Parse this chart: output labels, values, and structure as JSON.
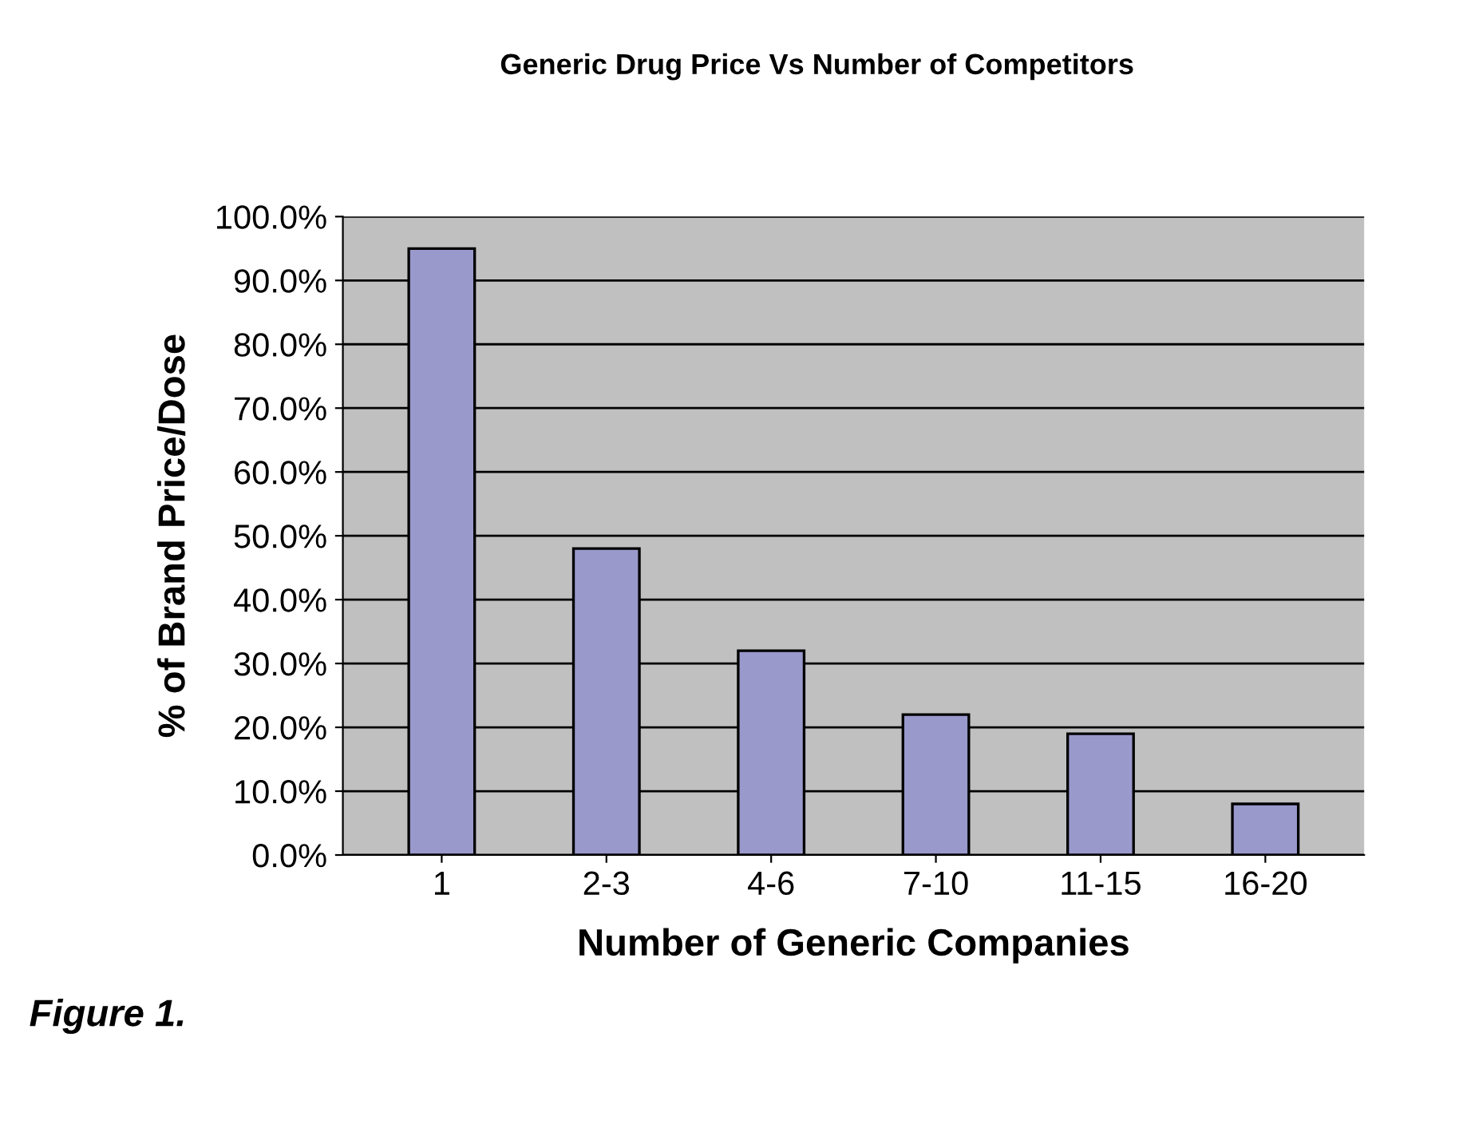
{
  "chart_data": {
    "type": "bar",
    "title": "Generic Drug Price Vs Number of Competitors",
    "xlabel": "Number of Generic Companies",
    "ylabel": "% of Brand Price/Dose",
    "categories": [
      "1",
      "2-3",
      "4-6",
      "7-10",
      "11-15",
      "16-20"
    ],
    "values": [
      95,
      48,
      32,
      22,
      19,
      8
    ],
    "color": "#9999cc",
    "ylim": [
      0,
      100
    ],
    "yticks": [
      {
        "value": 0,
        "label": "0.0%"
      },
      {
        "value": 10,
        "label": "10.0%"
      },
      {
        "value": 20,
        "label": "20.0%"
      },
      {
        "value": 30,
        "label": "30.0%"
      },
      {
        "value": 40,
        "label": "40.0%"
      },
      {
        "value": 50,
        "label": "50.0%"
      },
      {
        "value": 60,
        "label": "60.0%"
      },
      {
        "value": 70,
        "label": "70.0%"
      },
      {
        "value": 80,
        "label": "80.0%"
      },
      {
        "value": 90,
        "label": "90.0%"
      },
      {
        "value": 100,
        "label": "100.0%"
      }
    ],
    "grid": "y",
    "annotations": [
      "Figure 1."
    ]
  }
}
